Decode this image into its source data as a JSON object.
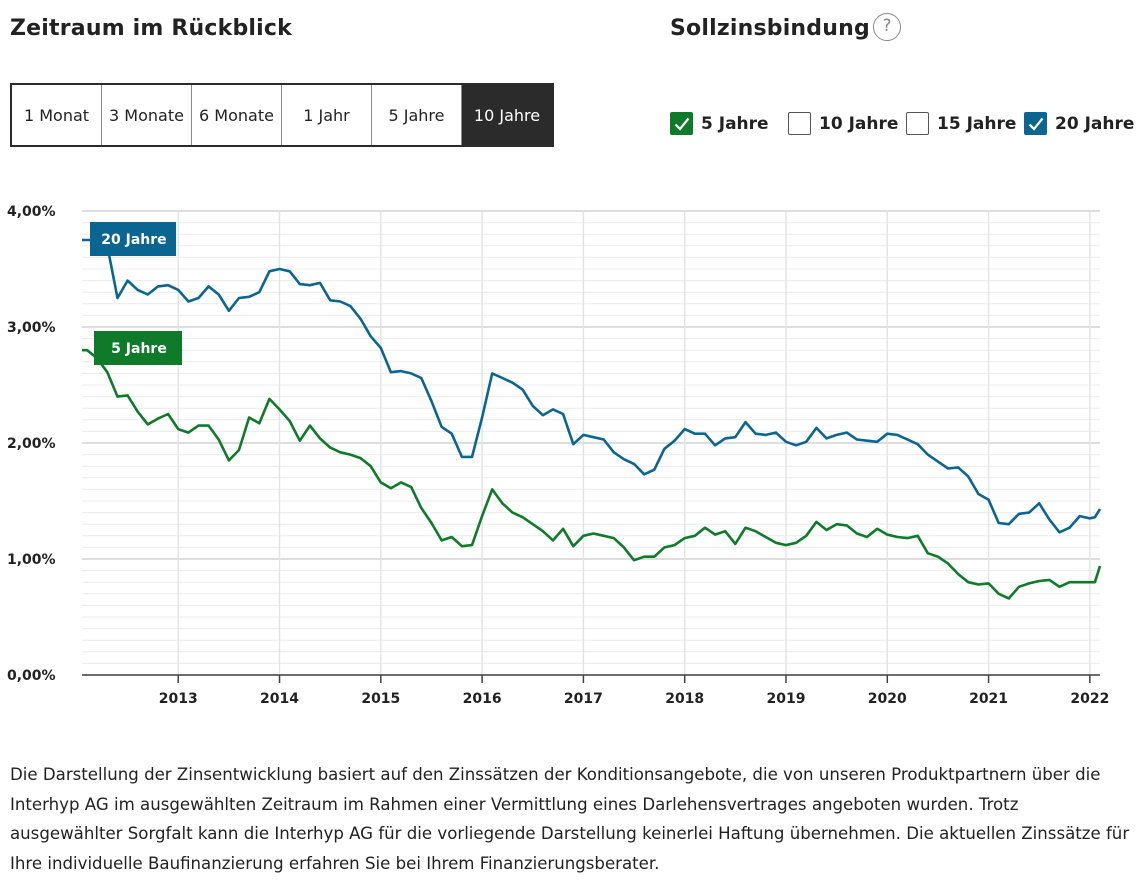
{
  "header": {
    "range_title": "Zeitraum im Rückblick",
    "binding_title": "Sollzinsbindung",
    "help_glyph": "?"
  },
  "range_buttons": [
    {
      "label": "1 Monat",
      "active": false
    },
    {
      "label": "3 Monate",
      "active": false
    },
    {
      "label": "6 Monate",
      "active": false
    },
    {
      "label": "1 Jahr",
      "active": false
    },
    {
      "label": "5 Jahre",
      "active": false
    },
    {
      "label": "10 Jahre",
      "active": true
    }
  ],
  "binding_options": [
    {
      "label": "5 Jahre",
      "checked": true,
      "color": "#0f7a2a"
    },
    {
      "label": "10 Jahre",
      "checked": false,
      "color": "#555555"
    },
    {
      "label": "15 Jahre",
      "checked": false,
      "color": "#555555"
    },
    {
      "label": "20 Jahre",
      "checked": true,
      "color": "#0b6591"
    }
  ],
  "chart_data": {
    "type": "line",
    "title": "",
    "xlabel": "",
    "ylabel": "",
    "x_range": [
      2012.05,
      2022.1
    ],
    "ylim": [
      0,
      4
    ],
    "y_ticks": [
      "0,00%",
      "1,00%",
      "2,00%",
      "3,00%",
      "4,00%"
    ],
    "y_tick_values": [
      0,
      1,
      2,
      3,
      4
    ],
    "x_ticks": [
      "2013",
      "2014",
      "2015",
      "2016",
      "2017",
      "2018",
      "2019",
      "2020",
      "2021",
      "2022"
    ],
    "x_tick_values": [
      2013,
      2014,
      2015,
      2016,
      2017,
      2018,
      2019,
      2020,
      2021,
      2022
    ],
    "grid": true,
    "series": [
      {
        "name": "20 Jahre",
        "color": "#0b6591",
        "points": [
          [
            2012.05,
            3.75
          ],
          [
            2012.2,
            3.75
          ],
          [
            2012.3,
            3.7
          ],
          [
            2012.4,
            3.25
          ],
          [
            2012.5,
            3.4
          ],
          [
            2012.6,
            3.32
          ],
          [
            2012.7,
            3.28
          ],
          [
            2012.8,
            3.35
          ],
          [
            2012.9,
            3.36
          ],
          [
            2013.0,
            3.32
          ],
          [
            2013.1,
            3.22
          ],
          [
            2013.2,
            3.25
          ],
          [
            2013.3,
            3.35
          ],
          [
            2013.4,
            3.28
          ],
          [
            2013.5,
            3.14
          ],
          [
            2013.6,
            3.25
          ],
          [
            2013.7,
            3.26
          ],
          [
            2013.8,
            3.3
          ],
          [
            2013.9,
            3.48
          ],
          [
            2014.0,
            3.5
          ],
          [
            2014.1,
            3.48
          ],
          [
            2014.2,
            3.37
          ],
          [
            2014.3,
            3.36
          ],
          [
            2014.4,
            3.38
          ],
          [
            2014.5,
            3.23
          ],
          [
            2014.6,
            3.22
          ],
          [
            2014.7,
            3.18
          ],
          [
            2014.8,
            3.07
          ],
          [
            2014.9,
            2.92
          ],
          [
            2015.0,
            2.82
          ],
          [
            2015.1,
            2.61
          ],
          [
            2015.2,
            2.62
          ],
          [
            2015.3,
            2.6
          ],
          [
            2015.4,
            2.56
          ],
          [
            2015.5,
            2.36
          ],
          [
            2015.6,
            2.14
          ],
          [
            2015.7,
            2.08
          ],
          [
            2015.8,
            1.88
          ],
          [
            2015.9,
            1.88
          ],
          [
            2016.0,
            2.22
          ],
          [
            2016.1,
            2.6
          ],
          [
            2016.2,
            2.56
          ],
          [
            2016.3,
            2.52
          ],
          [
            2016.4,
            2.46
          ],
          [
            2016.5,
            2.32
          ],
          [
            2016.6,
            2.24
          ],
          [
            2016.7,
            2.29
          ],
          [
            2016.8,
            2.25
          ],
          [
            2016.9,
            1.99
          ],
          [
            2017.0,
            2.07
          ],
          [
            2017.1,
            2.05
          ],
          [
            2017.2,
            2.03
          ],
          [
            2017.3,
            1.92
          ],
          [
            2017.4,
            1.86
          ],
          [
            2017.5,
            1.82
          ],
          [
            2017.6,
            1.73
          ],
          [
            2017.7,
            1.77
          ],
          [
            2017.8,
            1.95
          ],
          [
            2017.9,
            2.02
          ],
          [
            2018.0,
            2.12
          ],
          [
            2018.1,
            2.08
          ],
          [
            2018.2,
            2.08
          ],
          [
            2018.3,
            1.98
          ],
          [
            2018.4,
            2.04
          ],
          [
            2018.5,
            2.05
          ],
          [
            2018.6,
            2.18
          ],
          [
            2018.7,
            2.08
          ],
          [
            2018.8,
            2.07
          ],
          [
            2018.9,
            2.09
          ],
          [
            2019.0,
            2.01
          ],
          [
            2019.1,
            1.98
          ],
          [
            2019.2,
            2.01
          ],
          [
            2019.3,
            2.13
          ],
          [
            2019.4,
            2.04
          ],
          [
            2019.5,
            2.07
          ],
          [
            2019.6,
            2.09
          ],
          [
            2019.7,
            2.03
          ],
          [
            2019.8,
            2.02
          ],
          [
            2019.9,
            2.01
          ],
          [
            2020.0,
            2.08
          ],
          [
            2020.1,
            2.07
          ],
          [
            2020.2,
            2.03
          ],
          [
            2020.3,
            1.99
          ],
          [
            2020.4,
            1.9
          ],
          [
            2020.5,
            1.84
          ],
          [
            2020.6,
            1.78
          ],
          [
            2020.7,
            1.79
          ],
          [
            2020.8,
            1.71
          ],
          [
            2020.9,
            1.56
          ],
          [
            2021.0,
            1.51
          ],
          [
            2021.1,
            1.31
          ],
          [
            2021.2,
            1.3
          ],
          [
            2021.3,
            1.39
          ],
          [
            2021.4,
            1.4
          ],
          [
            2021.5,
            1.48
          ],
          [
            2021.6,
            1.34
          ],
          [
            2021.7,
            1.23
          ],
          [
            2021.8,
            1.27
          ],
          [
            2021.9,
            1.37
          ],
          [
            2022.0,
            1.35
          ],
          [
            2022.05,
            1.36
          ],
          [
            2022.1,
            1.43
          ]
        ]
      },
      {
        "name": "5 Jahre",
        "color": "#0f7a2a",
        "points": [
          [
            2012.05,
            2.8
          ],
          [
            2012.1,
            2.8
          ],
          [
            2012.2,
            2.73
          ],
          [
            2012.3,
            2.61
          ],
          [
            2012.4,
            2.4
          ],
          [
            2012.5,
            2.41
          ],
          [
            2012.6,
            2.27
          ],
          [
            2012.7,
            2.16
          ],
          [
            2012.8,
            2.21
          ],
          [
            2012.9,
            2.25
          ],
          [
            2013.0,
            2.12
          ],
          [
            2013.1,
            2.09
          ],
          [
            2013.2,
            2.15
          ],
          [
            2013.3,
            2.15
          ],
          [
            2013.4,
            2.03
          ],
          [
            2013.5,
            1.85
          ],
          [
            2013.6,
            1.94
          ],
          [
            2013.7,
            2.22
          ],
          [
            2013.8,
            2.17
          ],
          [
            2013.9,
            2.38
          ],
          [
            2014.0,
            2.29
          ],
          [
            2014.1,
            2.19
          ],
          [
            2014.2,
            2.02
          ],
          [
            2014.3,
            2.15
          ],
          [
            2014.4,
            2.04
          ],
          [
            2014.5,
            1.96
          ],
          [
            2014.6,
            1.92
          ],
          [
            2014.7,
            1.9
          ],
          [
            2014.8,
            1.87
          ],
          [
            2014.9,
            1.8
          ],
          [
            2015.0,
            1.66
          ],
          [
            2015.1,
            1.61
          ],
          [
            2015.2,
            1.66
          ],
          [
            2015.3,
            1.62
          ],
          [
            2015.4,
            1.44
          ],
          [
            2015.5,
            1.31
          ],
          [
            2015.6,
            1.16
          ],
          [
            2015.7,
            1.19
          ],
          [
            2015.8,
            1.11
          ],
          [
            2015.9,
            1.12
          ],
          [
            2016.0,
            1.37
          ],
          [
            2016.1,
            1.6
          ],
          [
            2016.2,
            1.48
          ],
          [
            2016.3,
            1.4
          ],
          [
            2016.4,
            1.36
          ],
          [
            2016.5,
            1.3
          ],
          [
            2016.6,
            1.24
          ],
          [
            2016.7,
            1.16
          ],
          [
            2016.8,
            1.26
          ],
          [
            2016.9,
            1.11
          ],
          [
            2017.0,
            1.2
          ],
          [
            2017.1,
            1.22
          ],
          [
            2017.2,
            1.2
          ],
          [
            2017.3,
            1.18
          ],
          [
            2017.4,
            1.1
          ],
          [
            2017.5,
            0.99
          ],
          [
            2017.6,
            1.02
          ],
          [
            2017.7,
            1.02
          ],
          [
            2017.8,
            1.1
          ],
          [
            2017.9,
            1.12
          ],
          [
            2018.0,
            1.18
          ],
          [
            2018.1,
            1.2
          ],
          [
            2018.2,
            1.27
          ],
          [
            2018.3,
            1.21
          ],
          [
            2018.4,
            1.24
          ],
          [
            2018.5,
            1.13
          ],
          [
            2018.6,
            1.27
          ],
          [
            2018.7,
            1.24
          ],
          [
            2018.8,
            1.19
          ],
          [
            2018.9,
            1.14
          ],
          [
            2019.0,
            1.12
          ],
          [
            2019.1,
            1.14
          ],
          [
            2019.2,
            1.2
          ],
          [
            2019.3,
            1.32
          ],
          [
            2019.4,
            1.25
          ],
          [
            2019.5,
            1.3
          ],
          [
            2019.6,
            1.29
          ],
          [
            2019.7,
            1.22
          ],
          [
            2019.8,
            1.19
          ],
          [
            2019.9,
            1.26
          ],
          [
            2020.0,
            1.21
          ],
          [
            2020.1,
            1.19
          ],
          [
            2020.2,
            1.18
          ],
          [
            2020.3,
            1.2
          ],
          [
            2020.4,
            1.05
          ],
          [
            2020.5,
            1.02
          ],
          [
            2020.6,
            0.96
          ],
          [
            2020.7,
            0.87
          ],
          [
            2020.8,
            0.8
          ],
          [
            2020.9,
            0.78
          ],
          [
            2021.0,
            0.79
          ],
          [
            2021.1,
            0.7
          ],
          [
            2021.2,
            0.66
          ],
          [
            2021.3,
            0.76
          ],
          [
            2021.4,
            0.79
          ],
          [
            2021.5,
            0.81
          ],
          [
            2021.6,
            0.82
          ],
          [
            2021.7,
            0.76
          ],
          [
            2021.8,
            0.8
          ],
          [
            2021.9,
            0.8
          ],
          [
            2022.0,
            0.8
          ],
          [
            2022.05,
            0.8
          ],
          [
            2022.1,
            0.94
          ]
        ]
      }
    ]
  },
  "disclaimer": "Die Darstellung der Zinsentwicklung basiert auf den Zinssätzen der Konditionsangebote, die von unseren Produktpartnern über die Interhyp AG im ausgewählten Zeitraum im Rahmen einer Vermittlung eines Darlehensvertrages angeboten wurden. Trotz ausgewählter Sorgfalt kann die Interhyp AG für die vorliegende Darstellung keinerlei Haftung übernehmen. Die aktuellen Zinssätze für Ihre individuelle Baufinanzierung erfahren Sie bei Ihrem Finanzierungsberater."
}
